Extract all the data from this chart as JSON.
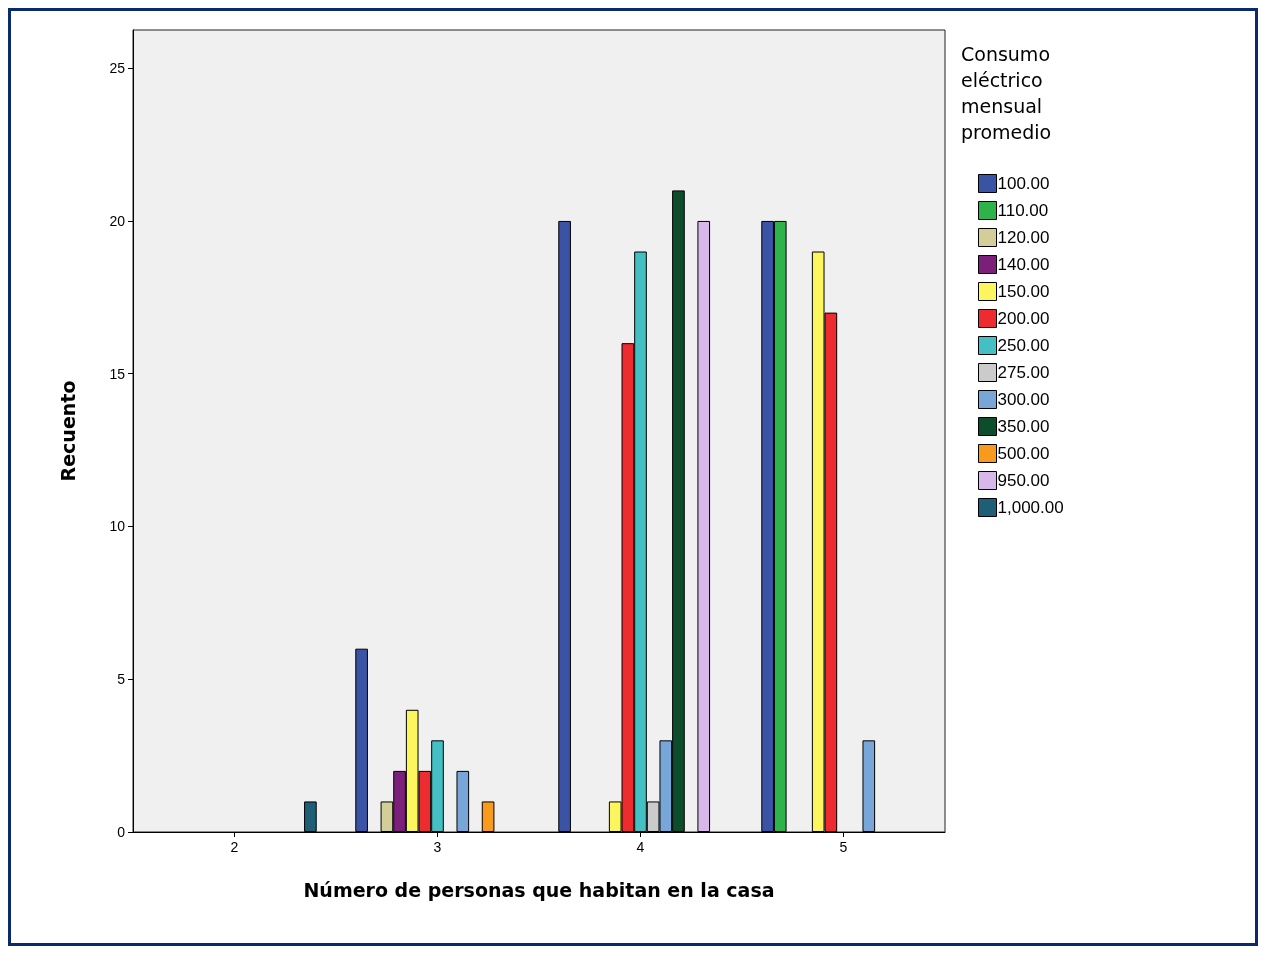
{
  "chart_data": {
    "type": "bar",
    "xlabel": "Número de personas que habitan en la casa",
    "ylabel": "Recuento",
    "legend_title": "Consumo eléctrico mensual promedio",
    "categories": [
      "2",
      "3",
      "4",
      "5"
    ],
    "ylim": [
      0,
      26.25
    ],
    "yticks": [
      0,
      5,
      10,
      15,
      20,
      25
    ],
    "grid": false,
    "legend": "right",
    "series": [
      {
        "name": "100.00",
        "color": "#3a53a4",
        "values": [
          null,
          6,
          20,
          20
        ]
      },
      {
        "name": "110.00",
        "color": "#2db34a",
        "values": [
          null,
          null,
          null,
          20
        ]
      },
      {
        "name": "120.00",
        "color": "#d3ce97",
        "values": [
          null,
          1,
          null,
          null
        ]
      },
      {
        "name": "140.00",
        "color": "#7b1f7b",
        "values": [
          null,
          2,
          null,
          null
        ]
      },
      {
        "name": "150.00",
        "color": "#fbf55e",
        "values": [
          null,
          4,
          1,
          19
        ]
      },
      {
        "name": "200.00",
        "color": "#ee2b2e",
        "values": [
          null,
          2,
          16,
          17
        ]
      },
      {
        "name": "250.00",
        "color": "#44bfc3",
        "values": [
          null,
          3,
          19,
          null
        ]
      },
      {
        "name": "275.00",
        "color": "#cbcbcb",
        "values": [
          null,
          null,
          1,
          null
        ]
      },
      {
        "name": "300.00",
        "color": "#79a6d8",
        "values": [
          null,
          2,
          3,
          3
        ]
      },
      {
        "name": "350.00",
        "color": "#0c4d2b",
        "values": [
          null,
          null,
          21,
          null
        ]
      },
      {
        "name": "500.00",
        "color": "#f89a1c",
        "values": [
          null,
          1,
          null,
          null
        ]
      },
      {
        "name": "950.00",
        "color": "#d8b8ea",
        "values": [
          null,
          null,
          20,
          null
        ]
      },
      {
        "name": "1,000.00",
        "color": "#1e5f77",
        "values": [
          1,
          null,
          null,
          null
        ]
      }
    ]
  }
}
